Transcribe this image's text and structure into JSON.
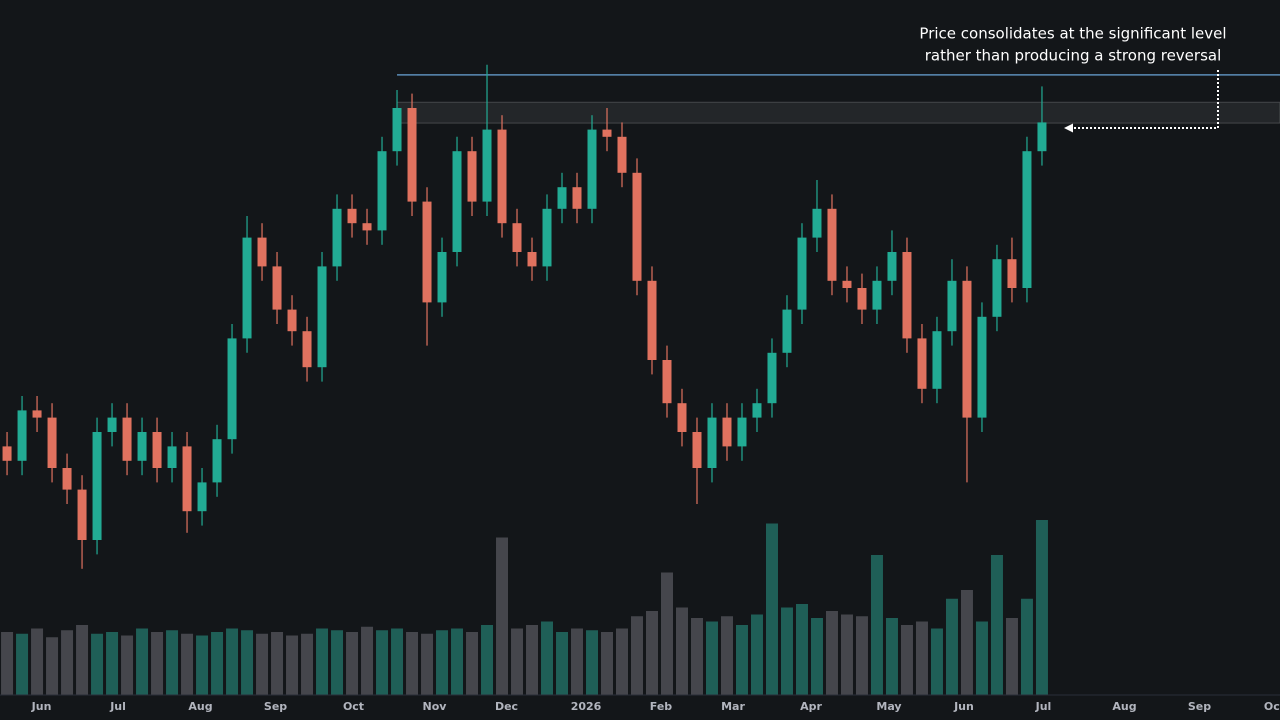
{
  "chart_data": {
    "type": "candlestick",
    "annotation": [
      "Price consolidates at the significant level",
      "rather than producing a strong reversal"
    ],
    "xlim": [
      -0.47,
      84.87
    ],
    "xticks": [
      {
        "value": 2.3,
        "label": "Jun"
      },
      {
        "value": 7.4,
        "label": "Jul"
      },
      {
        "value": 12.9,
        "label": "Aug"
      },
      {
        "value": 17.9,
        "label": "Sep"
      },
      {
        "value": 23.1,
        "label": "Oct"
      },
      {
        "value": 28.5,
        "label": "Nov"
      },
      {
        "value": 33.3,
        "label": "Dec"
      },
      {
        "value": 38.6,
        "label": "2026"
      },
      {
        "value": 43.6,
        "label": "Feb"
      },
      {
        "value": 48.4,
        "label": "Mar"
      },
      {
        "value": 53.6,
        "label": "Apr"
      },
      {
        "value": 58.8,
        "label": "May"
      },
      {
        "value": 63.8,
        "label": "Jun"
      },
      {
        "value": 69.1,
        "label": "Jul"
      },
      {
        "value": 74.5,
        "label": "Aug"
      },
      {
        "value": 79.5,
        "label": "Sep"
      },
      {
        "value": 84.5,
        "label": "Oct"
      }
    ],
    "ylim": [
      0,
      100
    ],
    "up_color": "#22ab94",
    "down_color": "#e0725f",
    "open": [
      38,
      36,
      43,
      42,
      35,
      32,
      25,
      40,
      42,
      36,
      40,
      35,
      38,
      29,
      33,
      39,
      53,
      67,
      63,
      57,
      54,
      49,
      63,
      71,
      69,
      68,
      79,
      85,
      72,
      58,
      65,
      79,
      72,
      82,
      69,
      65,
      63,
      71,
      74,
      71,
      82,
      81,
      76,
      61,
      50,
      44,
      40,
      35,
      42,
      38,
      42,
      44,
      51,
      57,
      67,
      71,
      61,
      60,
      57,
      61,
      65,
      53,
      46,
      54,
      61,
      42,
      56,
      64,
      60,
      79
    ],
    "high": [
      40,
      45,
      45,
      44,
      37,
      34,
      42,
      44,
      44,
      42,
      42,
      40,
      40,
      35,
      41,
      55,
      70,
      69,
      65,
      59,
      56,
      65,
      73,
      73,
      71,
      81,
      87.5,
      87,
      74,
      67,
      81,
      81,
      91,
      84,
      71,
      67,
      73,
      76,
      76,
      84,
      85,
      83,
      78,
      63,
      52,
      46,
      42,
      44,
      44,
      44,
      46,
      53,
      59,
      69,
      75,
      73,
      63,
      62,
      63,
      68,
      67,
      55,
      56,
      64,
      63,
      58,
      66,
      67,
      81,
      88
    ],
    "low": [
      34,
      34,
      40,
      33,
      30,
      21,
      23,
      38,
      34,
      34,
      33,
      33,
      26,
      27,
      31,
      37,
      51,
      61,
      55,
      52,
      47,
      47,
      61,
      67,
      66,
      66,
      77,
      70,
      52,
      56,
      63,
      70,
      70,
      67,
      63,
      61,
      61,
      69,
      69,
      69,
      79,
      74,
      59,
      48,
      42,
      38,
      30,
      33,
      36,
      36,
      40,
      42,
      49,
      55,
      65,
      59,
      58,
      55,
      55,
      59,
      51,
      44,
      44,
      52,
      33,
      40,
      54,
      58,
      58,
      77
    ],
    "close": [
      36,
      43,
      42,
      35,
      32,
      25,
      40,
      42,
      36,
      40,
      35,
      38,
      29,
      33,
      39,
      53,
      67,
      63,
      57,
      54,
      49,
      63,
      71,
      69,
      68,
      79,
      85,
      72,
      58,
      65,
      79,
      72,
      82,
      69,
      65,
      63,
      71,
      74,
      71,
      82,
      81,
      76,
      61,
      50,
      44,
      40,
      35,
      42,
      38,
      42,
      44,
      51,
      57,
      67,
      71,
      61,
      60,
      57,
      61,
      65,
      53,
      46,
      54,
      61,
      42,
      56,
      64,
      60,
      79,
      83
    ],
    "volume": {
      "ylim": [
        0,
        100
      ],
      "up_color": "#1f5f57",
      "down_color": "#45464c",
      "values": [
        36,
        35,
        38,
        33,
        37,
        40,
        35,
        36,
        34,
        38,
        36,
        37,
        35,
        34,
        36,
        38,
        37,
        35,
        36,
        34,
        35,
        38,
        37,
        36,
        39,
        37,
        38,
        36,
        35,
        37,
        38,
        36,
        40,
        90,
        38,
        40,
        42,
        36,
        38,
        37,
        36,
        38,
        45,
        48,
        70,
        50,
        44,
        42,
        45,
        40,
        46,
        98,
        50,
        52,
        44,
        48,
        46,
        45,
        80,
        44,
        40,
        42,
        38,
        55,
        60,
        42,
        80,
        44,
        55,
        100
      ]
    },
    "level": {
      "start": 26,
      "line": 89.6,
      "zone": [
        82.9,
        85.8
      ],
      "color": "#5b8db8"
    }
  }
}
